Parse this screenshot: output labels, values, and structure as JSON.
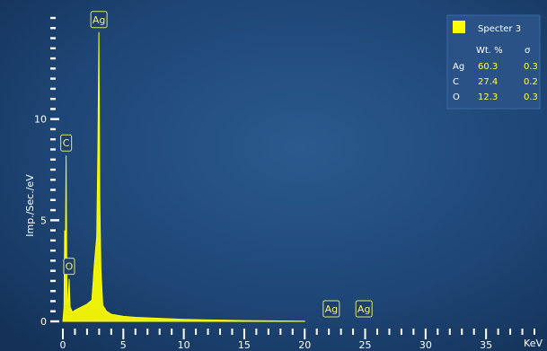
{
  "chart_data": {
    "type": "line",
    "xlabel": "KeV",
    "ylabel": "Imp./Sec./eV",
    "xlim": [
      0,
      39
    ],
    "ylim": [
      0,
      15
    ],
    "x_ticks": [
      0,
      5,
      10,
      15,
      20,
      25,
      30,
      35
    ],
    "y_ticks": [
      0,
      5,
      10
    ],
    "series": [
      {
        "color": "#ffff00",
        "x": [
          0.0,
          0.1,
          0.15,
          0.2,
          0.27,
          0.33,
          0.38,
          0.45,
          0.52,
          0.6,
          0.8,
          1.0,
          1.5,
          2.0,
          2.4,
          2.6,
          2.8,
          2.9,
          2.98,
          3.05,
          3.15,
          3.3,
          3.6,
          4.0,
          5.0,
          6.0,
          8.0,
          10.0,
          12.0,
          15.0,
          18.0,
          20.0
        ],
        "y": [
          0.0,
          0.7,
          4.5,
          2.5,
          8.2,
          2.2,
          0.9,
          1.1,
          2.1,
          0.7,
          0.45,
          0.55,
          0.7,
          0.85,
          1.05,
          2.8,
          4.2,
          8.5,
          14.3,
          6.0,
          2.5,
          0.8,
          0.5,
          0.35,
          0.25,
          0.2,
          0.15,
          0.1,
          0.07,
          0.04,
          0.02,
          0.01
        ]
      }
    ],
    "peak_labels": [
      {
        "label": "Ag",
        "x": 2.98,
        "y": 14.3
      },
      {
        "label": "C",
        "x": 0.27,
        "y": 8.2
      },
      {
        "label": "O",
        "x": 0.52,
        "y": 2.1
      },
      {
        "label": "Ag",
        "x": 22.2,
        "y": 0.2
      },
      {
        "label": "Ag",
        "x": 24.9,
        "y": 0.2
      }
    ],
    "legend": {
      "title": "Specter 3",
      "color": "#ffff00",
      "header_wt": "Wt. %",
      "header_sigma": "σ",
      "rows": [
        {
          "element": "Ag",
          "wt": "60.3",
          "sigma": "0.3"
        },
        {
          "element": "C",
          "wt": "27.4",
          "sigma": "0.2"
        },
        {
          "element": "O",
          "wt": "12.3",
          "sigma": "0.3"
        }
      ],
      "placement": "top-right"
    }
  }
}
